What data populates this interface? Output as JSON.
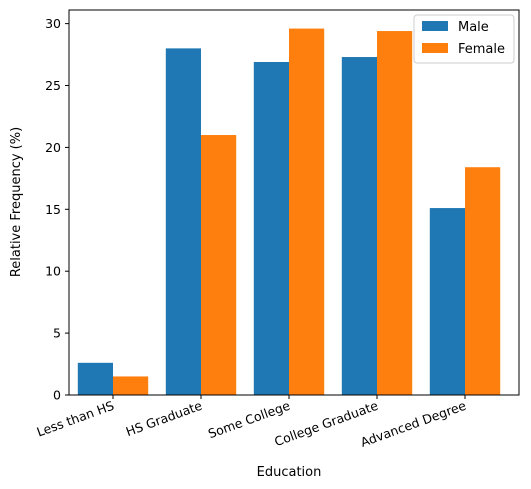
{
  "chart_data": {
    "type": "bar",
    "title": "",
    "xlabel": "Education",
    "ylabel": "Relative Frequency (%)",
    "categories": [
      "Less than HS",
      "HS Graduate",
      "Some College",
      "College Graduate",
      "Advanced Degree"
    ],
    "series": [
      {
        "name": "Male",
        "color": "#1f77b4",
        "values": [
          2.6,
          28.0,
          26.9,
          27.3,
          15.1
        ]
      },
      {
        "name": "Female",
        "color": "#ff7f0e",
        "values": [
          1.5,
          21.0,
          29.6,
          29.4,
          18.4
        ]
      }
    ],
    "ylim": [
      0,
      31.1
    ],
    "yticks": [
      0,
      5,
      10,
      15,
      20,
      25,
      30
    ],
    "legend_position": "top-right",
    "grid": false
  }
}
